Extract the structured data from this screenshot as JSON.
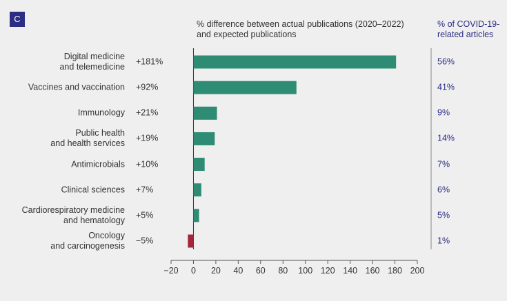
{
  "chart_data": {
    "type": "hbar",
    "panel_label": "C",
    "axis_title": "% difference between actual publications (2020–2022)\nand expected publications",
    "categories": [
      "Digital medicine\nand telemedicine",
      "Vaccines and vaccination",
      "Immunology",
      "Public health\nand health services",
      "Antimicrobials",
      "Clinical sciences",
      "Cardiorespiratory medicine\nand hematology",
      "Oncology\nand carcinogenesis"
    ],
    "values": [
      181,
      92,
      21,
      19,
      10,
      7,
      5,
      -5
    ],
    "value_labels": [
      "+181%",
      "+92%",
      "+21%",
      "+19%",
      "+10%",
      "+7%",
      "+5%",
      "−5%"
    ],
    "color": "#2e8b74",
    "negative_color": "#a3263a",
    "xlim": [
      -20,
      200
    ],
    "xticks": [
      {
        "value": -20,
        "label": "−20"
      },
      0,
      20,
      40,
      60,
      80,
      100,
      120,
      140,
      160,
      180,
      200
    ],
    "side_column": {
      "title": "% of COVID-19-\nrelated articles",
      "labels": [
        "56%",
        "41%",
        "9%",
        "14%",
        "7%",
        "6%",
        "5%",
        "1%"
      ]
    }
  }
}
